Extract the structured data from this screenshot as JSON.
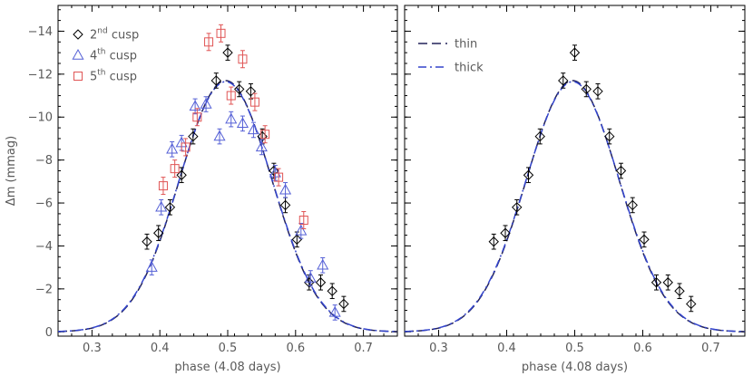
{
  "chart_data": [
    {
      "type": "scatter",
      "panel": "left",
      "xlabel": "phase (4.08 days)",
      "ylabel": "Δm (mmag)",
      "xlim": [
        0.25,
        0.75
      ],
      "ylim": [
        0.2,
        -15.2
      ],
      "y_inverted": true,
      "xticks": [
        0.3,
        0.4,
        0.5,
        0.6,
        0.7
      ],
      "yticks": [
        0,
        -2,
        -4,
        -6,
        -8,
        -10,
        -12,
        -14
      ],
      "legend_position": "top-left",
      "series": [
        {
          "legend_parts": [
            "2",
            "nd",
            " cusp"
          ],
          "marker": "diamond",
          "color": "#000000",
          "points": [
            [
              0.381,
              -4.2
            ],
            [
              0.398,
              -4.6
            ],
            [
              0.415,
              -5.8
            ],
            [
              0.432,
              -7.3
            ],
            [
              0.449,
              -9.1
            ],
            [
              0.483,
              -11.7
            ],
            [
              0.5,
              -13.0
            ],
            [
              0.517,
              -11.3
            ],
            [
              0.534,
              -11.2
            ],
            [
              0.551,
              -9.1
            ],
            [
              0.568,
              -7.5
            ],
            [
              0.585,
              -5.9
            ],
            [
              0.602,
              -4.3
            ],
            [
              0.62,
              -2.3
            ],
            [
              0.637,
              -2.3
            ],
            [
              0.654,
              -1.9
            ],
            [
              0.671,
              -1.3
            ]
          ],
          "errors": [
            0.35,
            0.35,
            0.35,
            0.35,
            0.35,
            0.35,
            0.35,
            0.35,
            0.35,
            0.35,
            0.35,
            0.35,
            0.35,
            0.35,
            0.35,
            0.35,
            0.35
          ]
        },
        {
          "legend_parts": [
            "4",
            "th",
            " cusp"
          ],
          "marker": "triangle",
          "color": "#5560d6",
          "points": [
            [
              0.388,
              -3.0
            ],
            [
              0.402,
              -5.8
            ],
            [
              0.418,
              -8.5
            ],
            [
              0.432,
              -8.8
            ],
            [
              0.452,
              -10.5
            ],
            [
              0.468,
              -10.6
            ],
            [
              0.488,
              -9.1
            ],
            [
              0.505,
              -9.9
            ],
            [
              0.522,
              -9.7
            ],
            [
              0.538,
              -9.4
            ],
            [
              0.55,
              -8.6
            ],
            [
              0.57,
              -7.4
            ],
            [
              0.585,
              -6.6
            ],
            [
              0.608,
              -4.7
            ],
            [
              0.622,
              -2.5
            ],
            [
              0.64,
              -3.1
            ],
            [
              0.658,
              -0.9
            ]
          ],
          "errors": [
            0.35,
            0.35,
            0.35,
            0.35,
            0.35,
            0.35,
            0.35,
            0.35,
            0.35,
            0.35,
            0.35,
            0.35,
            0.35,
            0.35,
            0.35,
            0.35,
            0.35
          ]
        },
        {
          "legend_parts": [
            "5",
            "th",
            " cusp"
          ],
          "marker": "square",
          "color": "#e05555",
          "points": [
            [
              0.405,
              -6.8
            ],
            [
              0.422,
              -7.6
            ],
            [
              0.438,
              -8.6
            ],
            [
              0.455,
              -10.0
            ],
            [
              0.472,
              -13.5
            ],
            [
              0.49,
              -13.9
            ],
            [
              0.505,
              -11.0
            ],
            [
              0.522,
              -12.7
            ],
            [
              0.54,
              -10.7
            ],
            [
              0.555,
              -9.2
            ],
            [
              0.575,
              -7.2
            ],
            [
              0.612,
              -5.2
            ]
          ],
          "errors": [
            0.4,
            0.4,
            0.4,
            0.4,
            0.4,
            0.4,
            0.4,
            0.4,
            0.4,
            0.4,
            0.4,
            0.4
          ]
        }
      ],
      "curves": [
        {
          "style": "dashed",
          "color": "#22225a",
          "center": 0.497,
          "amplitude": -11.7,
          "sigma": 0.068
        },
        {
          "style": "dashdot",
          "color": "#3344cc",
          "center": 0.497,
          "amplitude": -11.65,
          "sigma": 0.0685
        }
      ]
    },
    {
      "type": "scatter",
      "panel": "right",
      "xlabel": "phase (4.08 days)",
      "ylabel": "",
      "xlim": [
        0.25,
        0.75
      ],
      "ylim": [
        0.2,
        -15.2
      ],
      "y_inverted": true,
      "xticks": [
        0.3,
        0.4,
        0.5,
        0.6,
        0.7
      ],
      "yticks": [
        0,
        -2,
        -4,
        -6,
        -8,
        -10,
        -12,
        -14
      ],
      "legend_position": "top-left",
      "series": [
        {
          "marker": "diamond",
          "color": "#000000",
          "points": [
            [
              0.381,
              -4.2
            ],
            [
              0.398,
              -4.6
            ],
            [
              0.415,
              -5.8
            ],
            [
              0.432,
              -7.3
            ],
            [
              0.449,
              -9.1
            ],
            [
              0.483,
              -11.7
            ],
            [
              0.5,
              -13.0
            ],
            [
              0.517,
              -11.3
            ],
            [
              0.534,
              -11.2
            ],
            [
              0.551,
              -9.1
            ],
            [
              0.568,
              -7.5
            ],
            [
              0.585,
              -5.9
            ],
            [
              0.602,
              -4.3
            ],
            [
              0.62,
              -2.3
            ],
            [
              0.637,
              -2.3
            ],
            [
              0.654,
              -1.9
            ],
            [
              0.671,
              -1.3
            ]
          ],
          "errors": [
            0.35,
            0.35,
            0.35,
            0.35,
            0.35,
            0.35,
            0.35,
            0.35,
            0.35,
            0.35,
            0.35,
            0.35,
            0.35,
            0.35,
            0.35,
            0.35,
            0.35
          ]
        }
      ],
      "curves": [
        {
          "name": "thin",
          "style": "dashed",
          "color": "#22225a",
          "center": 0.497,
          "amplitude": -11.7,
          "sigma": 0.068
        },
        {
          "name": "thick",
          "style": "dashdot",
          "color": "#3344cc",
          "center": 0.497,
          "amplitude": -11.65,
          "sigma": 0.0685
        }
      ]
    }
  ]
}
